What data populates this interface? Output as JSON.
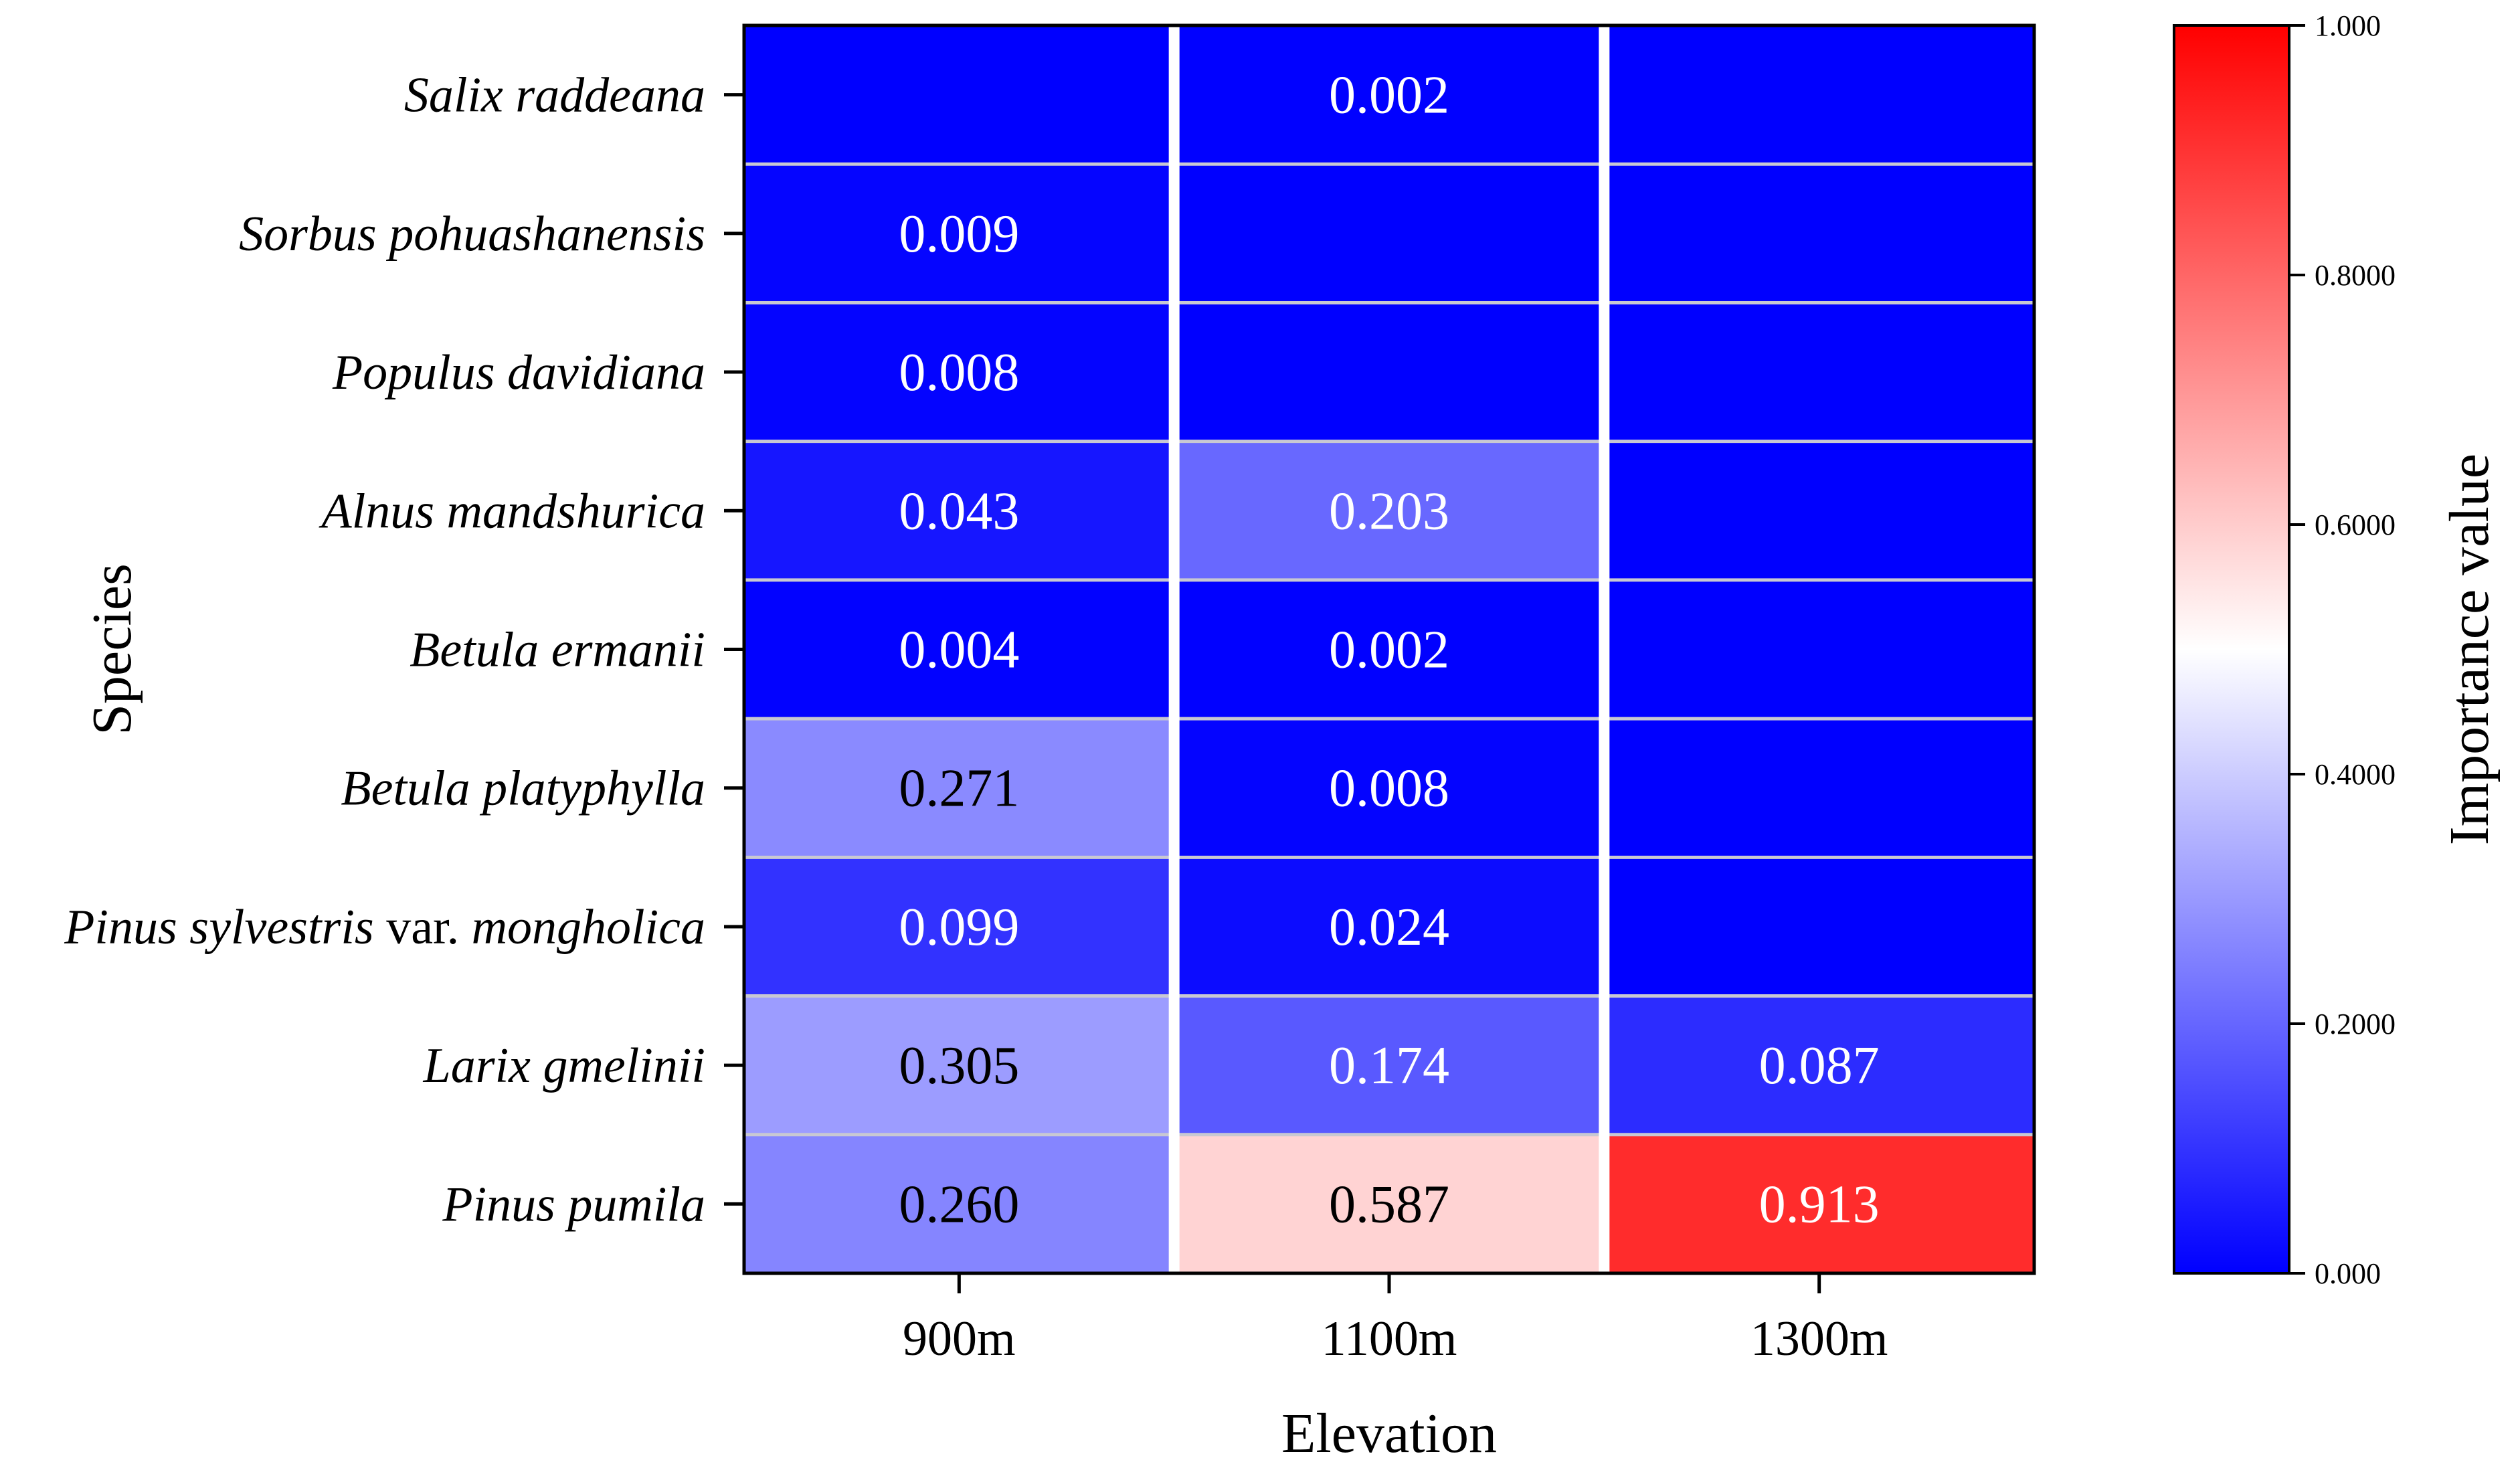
{
  "chart_data": {
    "type": "heatmap",
    "xlabel": "Elevation",
    "ylabel": "Species",
    "x_categories": [
      "900m",
      "1100m",
      "1300m"
    ],
    "y_categories": [
      {
        "parts": [
          {
            "text": "Salix raddeana",
            "italic": true
          }
        ]
      },
      {
        "parts": [
          {
            "text": "Sorbus pohuashanensis",
            "italic": true
          }
        ]
      },
      {
        "parts": [
          {
            "text": "Populus davidiana",
            "italic": true
          }
        ]
      },
      {
        "parts": [
          {
            "text": "Alnus mandshurica",
            "italic": true
          }
        ]
      },
      {
        "parts": [
          {
            "text": "Betula ermanii",
            "italic": true
          }
        ]
      },
      {
        "parts": [
          {
            "text": "Betula platyphylla",
            "italic": true
          }
        ]
      },
      {
        "parts": [
          {
            "text": "Pinus sylvestris ",
            "italic": true
          },
          {
            "text": "var.",
            "italic": false
          },
          {
            "text": " mongholica",
            "italic": true
          }
        ]
      },
      {
        "parts": [
          {
            "text": "Larix gmelinii",
            "italic": true
          }
        ]
      },
      {
        "parts": [
          {
            "text": "Pinus pumila",
            "italic": true
          }
        ]
      }
    ],
    "values": [
      [
        null,
        "0.002",
        null
      ],
      [
        "0.009",
        null,
        null
      ],
      [
        "0.008",
        null,
        null
      ],
      [
        "0.043",
        "0.203",
        null
      ],
      [
        "0.004",
        "0.002",
        null
      ],
      [
        "0.271",
        "0.008",
        null
      ],
      [
        "0.099",
        "0.024",
        null
      ],
      [
        "0.305",
        "0.174",
        "0.087"
      ],
      [
        "0.260",
        "0.587",
        "0.913"
      ]
    ],
    "colorbar": {
      "label": "Importance value",
      "range": [
        0,
        1
      ],
      "ticks": [
        {
          "value": 0,
          "label": "0.000"
        },
        {
          "value": 0.2,
          "label": "0.2000"
        },
        {
          "value": 0.4,
          "label": "0.4000"
        },
        {
          "value": 0.6,
          "label": "0.6000"
        },
        {
          "value": 0.8,
          "label": "0.8000"
        },
        {
          "value": 1.0,
          "label": "1.000"
        }
      ],
      "colors": {
        "low": "#0000ff",
        "mid": "#ffffff",
        "high": "#ff0000"
      }
    }
  }
}
